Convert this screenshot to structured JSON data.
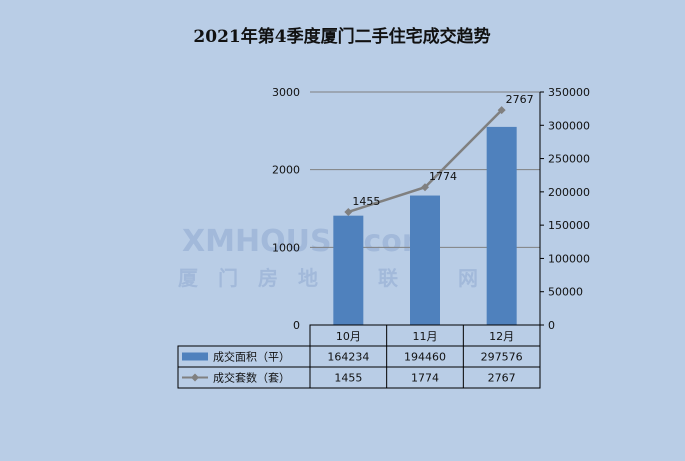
{
  "chart_data": {
    "type": "bar",
    "title": "2021年第4季度厦门二手住宅成交趋势",
    "categories": [
      "10月",
      "11月",
      "12月"
    ],
    "series": [
      {
        "name": "成交面积（平）",
        "type": "bar",
        "axis": "right",
        "values": [
          164234,
          194460,
          297576
        ],
        "color": "#4f81bd"
      },
      {
        "name": "成交套数（套）",
        "type": "line",
        "axis": "left",
        "values": [
          1455,
          1774,
          2767
        ],
        "color": "#808080"
      }
    ],
    "y_left": {
      "min": 0,
      "max": 3000,
      "ticks": [
        0,
        1000,
        2000,
        3000
      ]
    },
    "y_right": {
      "min": 0,
      "max": 350000,
      "ticks": [
        0,
        50000,
        100000,
        150000,
        200000,
        250000,
        300000,
        350000
      ]
    },
    "data_labels": [
      "1455",
      "1774",
      "2767"
    ],
    "table": {
      "header": [
        "10月",
        "11月",
        "12月"
      ],
      "rows": [
        {
          "label": "成交面积（平）",
          "cells": [
            "164234",
            "194460",
            "297576"
          ]
        },
        {
          "label": "成交套数（套）",
          "cells": [
            "1455",
            "1774",
            "2767"
          ]
        }
      ]
    },
    "grid": true,
    "legend": "data-table"
  },
  "watermark": {
    "brand": "XMHOUSE.com",
    "name": "厦门房地产联合网"
  }
}
